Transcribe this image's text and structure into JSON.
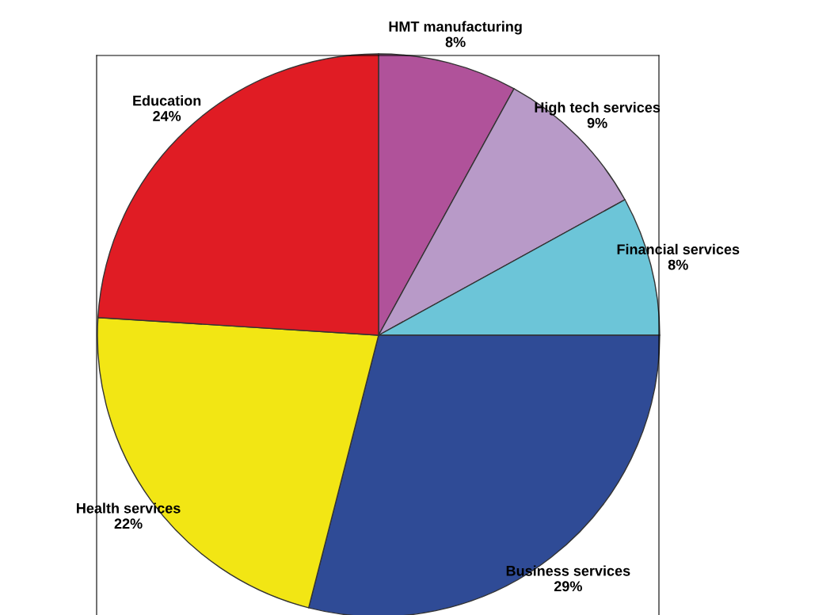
{
  "chart_data": {
    "type": "pie",
    "categories": [
      "HMT manufacturing",
      "High tech services",
      "Financial services",
      "Business services",
      "Health services",
      "Education"
    ],
    "values": [
      8,
      9,
      8,
      29,
      22,
      24
    ],
    "value_labels": [
      "8%",
      "9%",
      "8%",
      "29%",
      "22%",
      "24%"
    ],
    "colors": [
      "#b0529a",
      "#b89ac8",
      "#6cc5d8",
      "#2f4b96",
      "#f2e614",
      "#e01c24"
    ],
    "legend": false
  }
}
